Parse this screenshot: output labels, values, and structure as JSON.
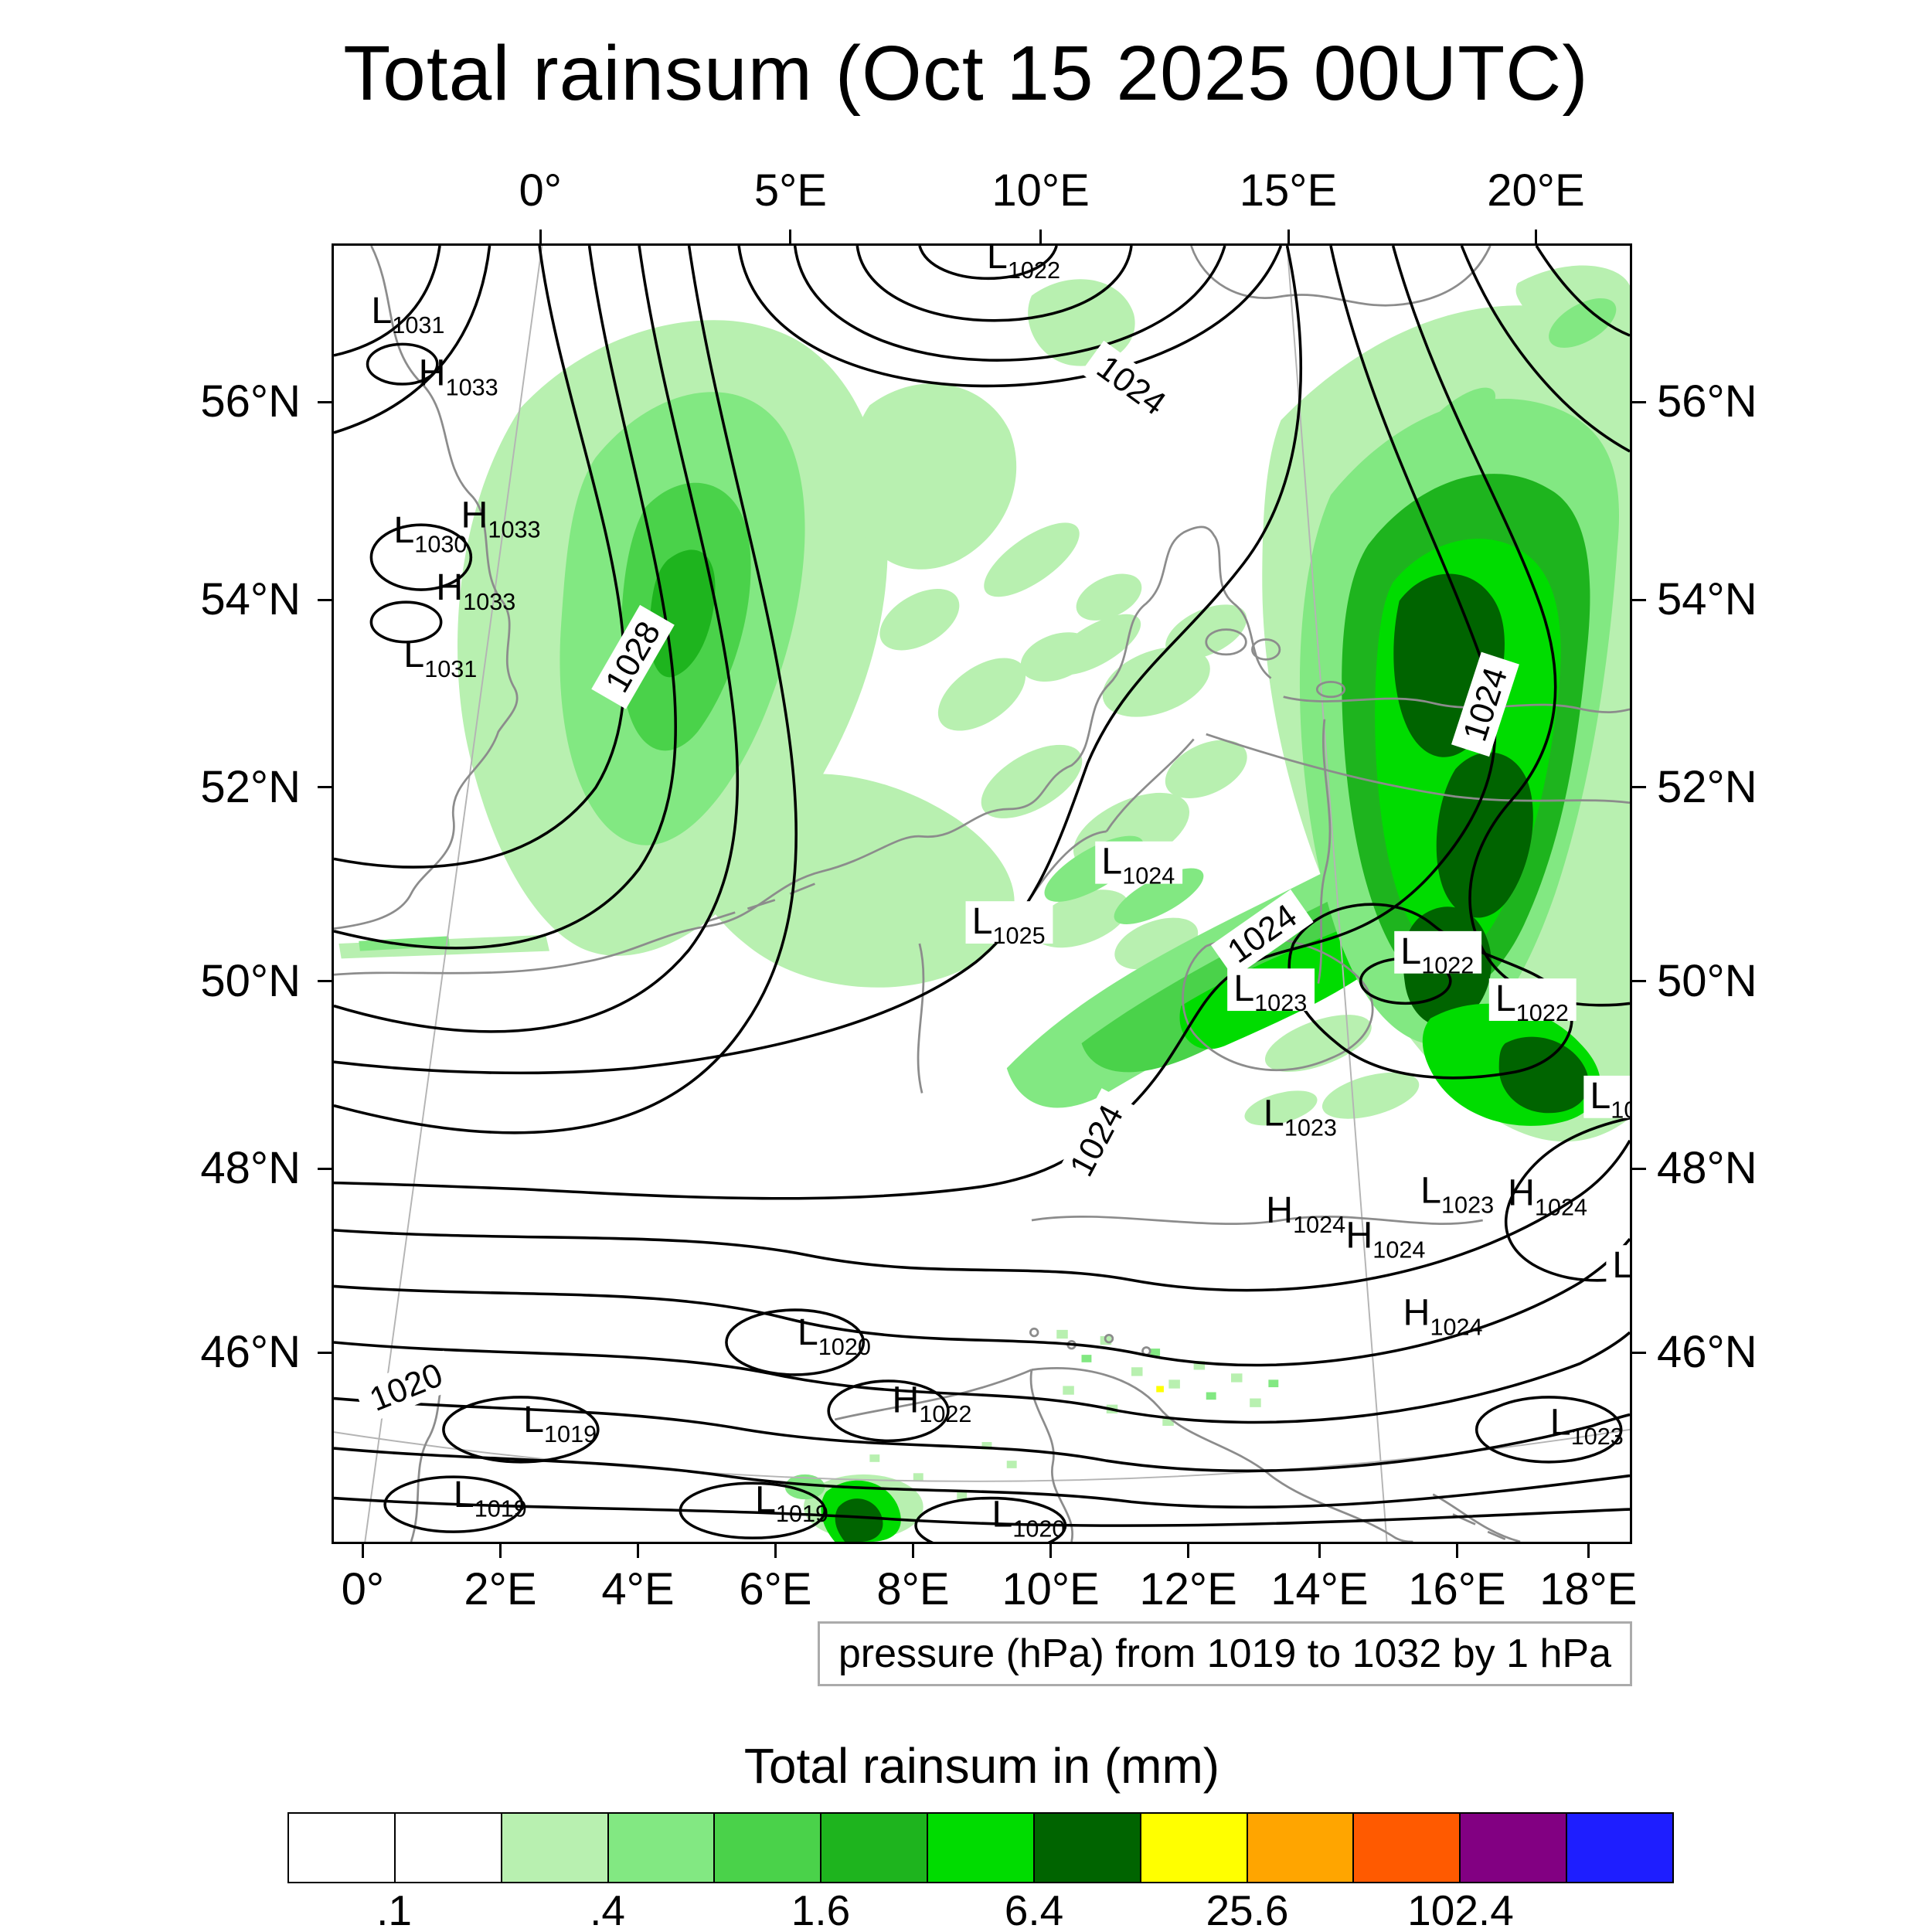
{
  "title": "Total rainsum (Oct 15 2025 00UTC)",
  "pressure_note": "pressure (hPa) from 1019 to 1032 by 1 hPa",
  "axes": {
    "top": [
      "0°",
      "5°E",
      "10°E",
      "15°E",
      "20°E"
    ],
    "bottom": [
      "0°",
      "2°E",
      "4°E",
      "6°E",
      "8°E",
      "10°E",
      "12°E",
      "14°E",
      "16°E",
      "18°E"
    ],
    "left": [
      "56°N",
      "54°N",
      "52°N",
      "50°N",
      "48°N",
      "46°N"
    ],
    "right": [
      "56°N",
      "54°N",
      "52°N",
      "50°N",
      "48°N",
      "46°N"
    ]
  },
  "map": {
    "contour_labels": [
      "1024",
      "1028",
      "1024",
      "1024",
      "1024",
      "1020"
    ],
    "pressure_centers": [
      {
        "letter": "L",
        "value": "1031"
      },
      {
        "letter": "H",
        "value": "1033"
      },
      {
        "letter": "H",
        "value": "1033"
      },
      {
        "letter": "L",
        "value": "1030"
      },
      {
        "letter": "H",
        "value": "1033"
      },
      {
        "letter": "L",
        "value": "1031"
      },
      {
        "letter": "L",
        "value": "1022"
      },
      {
        "letter": "L",
        "value": "1024"
      },
      {
        "letter": "L",
        "value": "1025"
      },
      {
        "letter": "L",
        "value": "1022"
      },
      {
        "letter": "L",
        "value": "1023"
      },
      {
        "letter": "L",
        "value": "1022"
      },
      {
        "letter": "L",
        "value": "10"
      },
      {
        "letter": "L",
        "value": "1023"
      },
      {
        "letter": "L",
        "value": "1023"
      },
      {
        "letter": "H",
        "value": "1024"
      },
      {
        "letter": "H",
        "value": "1024"
      },
      {
        "letter": "H",
        "value": "1024"
      },
      {
        "letter": "L",
        "value": ""
      },
      {
        "letter": "H",
        "value": "1024"
      },
      {
        "letter": "L",
        "value": "1020"
      },
      {
        "letter": "L",
        "value": "1019"
      },
      {
        "letter": "H",
        "value": "1022"
      },
      {
        "letter": "L",
        "value": "1023"
      },
      {
        "letter": "L",
        "value": "1019"
      },
      {
        "letter": "L",
        "value": "1019"
      },
      {
        "letter": "L",
        "value": "1020"
      }
    ]
  },
  "colorbar": {
    "title": "Total rainsum in (mm)",
    "tick_labels": [
      ".1",
      ".4",
      "1.6",
      "6.4",
      "25.6",
      "102.4"
    ],
    "tick_boundaries": [
      1,
      3,
      5,
      7,
      9,
      11
    ],
    "colors": [
      "#ffffff",
      "#ffffff",
      "#b8f0b0",
      "#82e882",
      "#4ad24a",
      "#1eb41e",
      "#00dc00",
      "#006400",
      "#ffff00",
      "#ffa500",
      "#ff5a00",
      "#820082",
      "#1e1eff"
    ]
  },
  "chart_data": {
    "type": "heatmap",
    "subtype": "filled-contour precipitation map with pressure isobars",
    "title": "Total rainsum (Oct 15 2025 00UTC)",
    "region": {
      "lon_ticks_top": [
        "0°",
        "5°E",
        "10°E",
        "15°E",
        "20°E"
      ],
      "lon_ticks_bottom": [
        "0°",
        "2°E",
        "4°E",
        "6°E",
        "8°E",
        "10°E",
        "12°E",
        "14°E",
        "16°E",
        "18°E"
      ],
      "lat_ticks": [
        "56°N",
        "54°N",
        "52°N",
        "50°N",
        "48°N",
        "46°N"
      ]
    },
    "rain_colorbar": {
      "label": "Total rainsum in (mm)",
      "labeled_levels_mm": [
        0.1,
        0.4,
        1.6,
        6.4,
        25.6,
        102.4
      ],
      "colors": [
        "#ffffff",
        "#ffffff",
        "#b8f0b0",
        "#82e882",
        "#4ad24a",
        "#1eb41e",
        "#00dc00",
        "#006400",
        "#ffff00",
        "#ffa500",
        "#ff5a00",
        "#820082",
        "#1e1eff"
      ]
    },
    "isobars": {
      "unit": "hPa",
      "from": 1019,
      "to": 1032,
      "by": 1,
      "inline_labels": [
        1024,
        1028,
        1024,
        1024,
        1024,
        1020
      ]
    },
    "pressure_centers": [
      {
        "type": "L",
        "hpa": "1031"
      },
      {
        "type": "H",
        "hpa": "1033"
      },
      {
        "type": "H",
        "hpa": "1033"
      },
      {
        "type": "L",
        "hpa": "1030"
      },
      {
        "type": "H",
        "hpa": "1033"
      },
      {
        "type": "L",
        "hpa": "1031"
      },
      {
        "type": "L",
        "hpa": "1022"
      },
      {
        "type": "L",
        "hpa": "1024"
      },
      {
        "type": "L",
        "hpa": "1025"
      },
      {
        "type": "L",
        "hpa": "1022"
      },
      {
        "type": "L",
        "hpa": "1023"
      },
      {
        "type": "L",
        "hpa": "1022"
      },
      {
        "type": "L",
        "hpa": "10"
      },
      {
        "type": "L",
        "hpa": "1023"
      },
      {
        "type": "L",
        "hpa": "1023"
      },
      {
        "type": "H",
        "hpa": "1024"
      },
      {
        "type": "H",
        "hpa": "1024"
      },
      {
        "type": "H",
        "hpa": "1024"
      },
      {
        "type": "L",
        "hpa": ""
      },
      {
        "type": "H",
        "hpa": "1024"
      },
      {
        "type": "L",
        "hpa": "1020"
      },
      {
        "type": "L",
        "hpa": "1019"
      },
      {
        "type": "H",
        "hpa": "1022"
      },
      {
        "type": "L",
        "hpa": "1023"
      },
      {
        "type": "L",
        "hpa": "1019"
      },
      {
        "type": "L",
        "hpa": "1019"
      },
      {
        "type": "L",
        "hpa": "1020"
      }
    ],
    "rain_areas": [
      {
        "area": "North Sea / eastern England toward Germany (NE-SW band)",
        "intensity_mm": "0.1 - 1.6"
      },
      {
        "area": "Eastern Germany / Poland / Czechia (large maximum)",
        "intensity_mm": "1.6 - 25.6"
      },
      {
        "area": "Alpine region, scattered specks",
        "intensity_mm": "0.1 - 0.8"
      },
      {
        "area": "Bottom edge near 7°E (intense small cell)",
        "intensity_mm": "6.4 - 25.6"
      }
    ]
  }
}
